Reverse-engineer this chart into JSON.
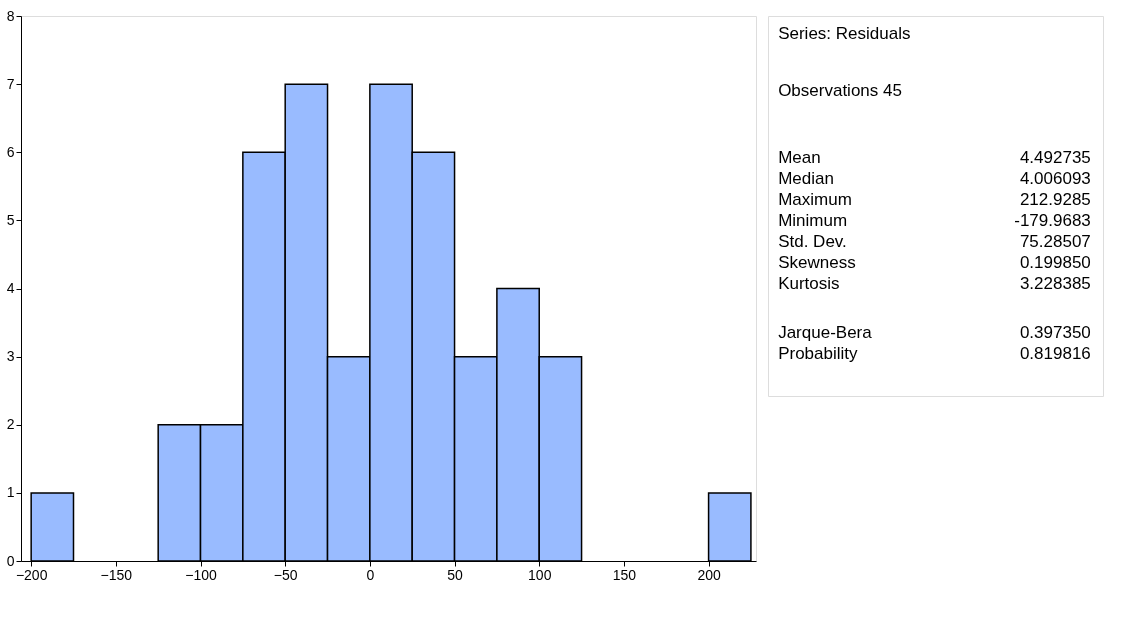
{
  "chart_data": [
    {
      "type": "histogram",
      "bins": [
        -200,
        -175,
        -150,
        -125,
        -100,
        -75,
        -50,
        -25,
        0,
        25,
        50,
        75,
        100,
        125,
        150,
        175,
        200,
        225
      ],
      "values": [
        1,
        0,
        0,
        2,
        2,
        6,
        7,
        3,
        7,
        6,
        3,
        4,
        3,
        0,
        0,
        0,
        1
      ],
      "color": "#99bbff",
      "xlim": [
        -206,
        228
      ],
      "ylim": [
        0,
        8
      ],
      "xticks": [
        -200,
        -150,
        -100,
        -50,
        0,
        50,
        100,
        150,
        200
      ],
      "yticks": [
        0,
        1,
        2,
        3,
        4,
        5,
        6,
        7,
        8
      ],
      "grid": false
    },
    {
      "type": "other",
      "title": "Series: Residuals",
      "subtitle": "Observations 45",
      "annotations": [
        "Mean 4.492735",
        "Median 4.006093",
        "Maximum 212.9285",
        "Minimum -179.9683",
        "Std. Dev. 75.28507",
        "Skewness 0.199850",
        "Kurtosis 3.228385",
        "Jarque-Bera 0.397350",
        "Probability 0.819816"
      ]
    }
  ]
}
